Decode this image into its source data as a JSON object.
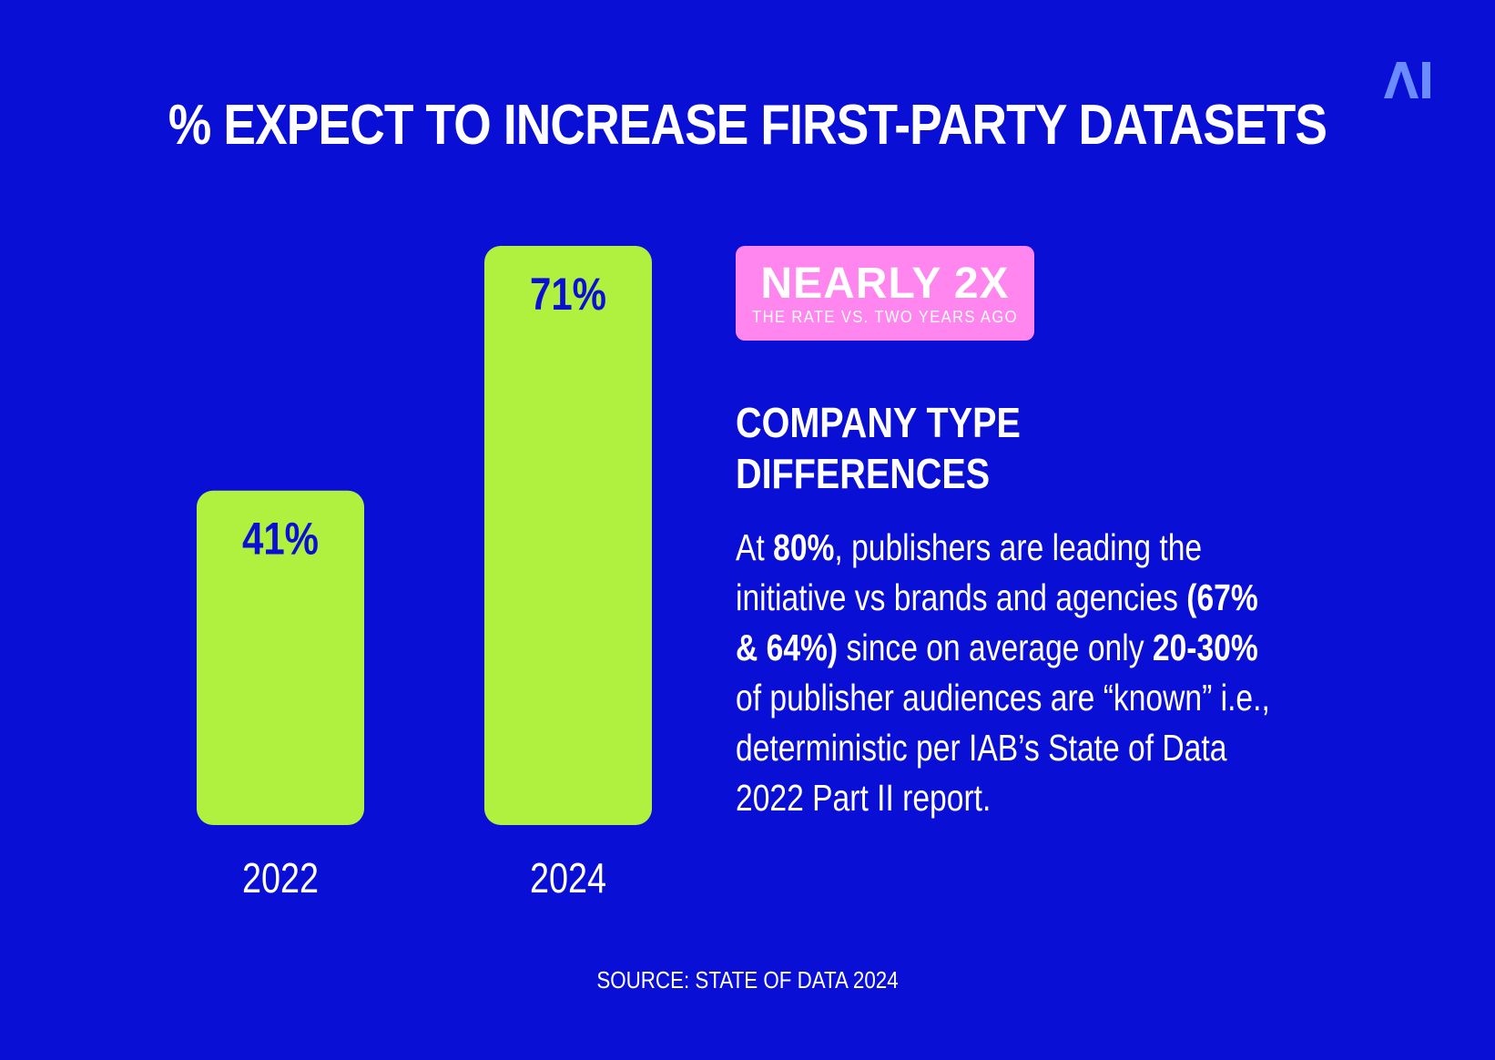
{
  "colors": {
    "background": "#0a0fd6",
    "bar": "#b0f03f",
    "badge": "#ff86ef",
    "text": "#ffffff",
    "value_text": "#0a0fd6"
  },
  "logo": {
    "text": "AI",
    "icon": "ai-logo-icon"
  },
  "title": "% EXPECT TO INCREASE FIRST-PARTY DATASETS",
  "chart_data": {
    "type": "bar",
    "title": "% EXPECT TO INCREASE FIRST-PARTY DATASETS",
    "categories": [
      "2022",
      "2024"
    ],
    "values": [
      41,
      71
    ],
    "value_labels": [
      "41%",
      "71%"
    ],
    "unit": "%",
    "ylim": [
      0,
      71
    ],
    "grid": false,
    "legend": "none"
  },
  "badge": {
    "main": "NEARLY 2X",
    "sub": "THE RATE VS. TWO YEARS AGO"
  },
  "subhead": {
    "line1": "COMPANY TYPE",
    "line2": "DIFFERENCES"
  },
  "body": {
    "p1": "At ",
    "b1": "80%",
    "p2": ", publishers are leading the initiative vs brands and agencies ",
    "b2": "(67% & 64%)",
    "p3": " since on average only ",
    "b3": "20-30%",
    "p4": " of publisher audiences are “known” i.e., deterministic per IAB’s State of Data 2022 Part II report."
  },
  "source": "SOURCE: STATE OF DATA 2024"
}
